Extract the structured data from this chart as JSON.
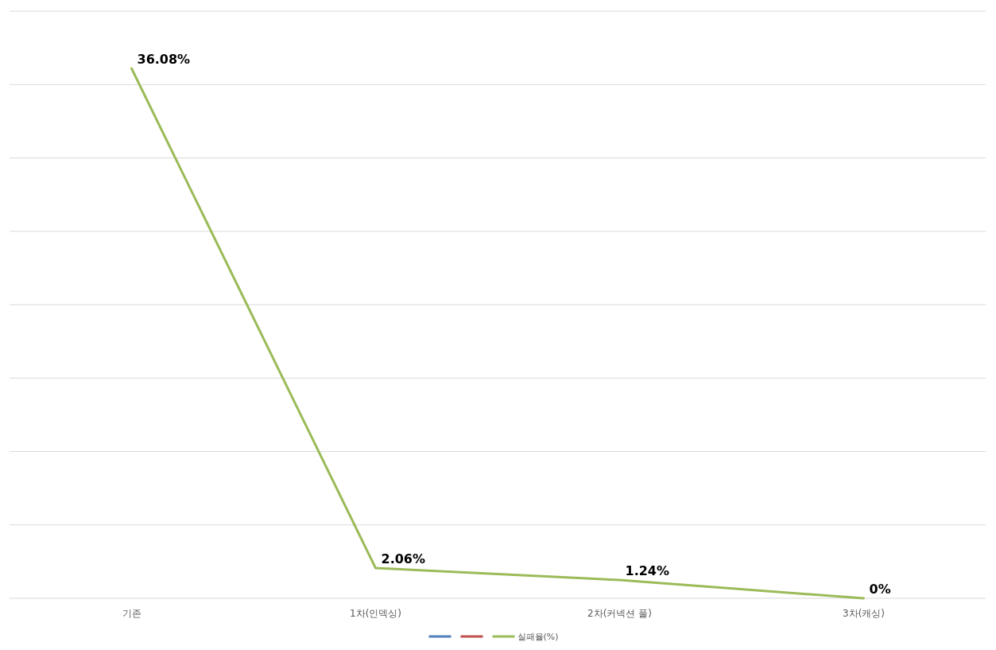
{
  "chart_data": {
    "type": "line",
    "categories": [
      "기존",
      "1차(인덱싱)",
      "2차(커넥션 풀)",
      "3차(캐싱)"
    ],
    "series": [
      {
        "color": "#4f81bd",
        "values": [
          null,
          null,
          null,
          null
        ]
      },
      {
        "color": "#c0504d",
        "values": [
          null,
          null,
          null,
          null
        ]
      },
      {
        "name": "실패율(%)",
        "color": "#9bbb59",
        "values": [
          36.08,
          2.06,
          1.24,
          0
        ],
        "value_labels": [
          "36.08%",
          "2.06%",
          "1.24%",
          "0%"
        ]
      }
    ],
    "grid": "y",
    "tick_labels": "x",
    "legend": "bottom",
    "marker": "none",
    "line_style": "solid"
  }
}
